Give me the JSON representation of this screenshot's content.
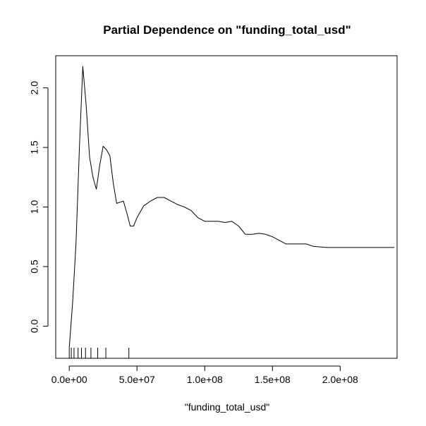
{
  "chart_data": {
    "type": "line",
    "title": "Partial Dependence on \"funding_total_usd\"",
    "xlabel": "\"funding_total_usd\"",
    "ylabel": "",
    "xlim": [
      -10000000,
      242000000
    ],
    "ylim": [
      -0.27,
      2.27
    ],
    "x_ticks": [
      {
        "value": 0,
        "label": "0.0e+00"
      },
      {
        "value": 50000000,
        "label": "5.0e+07"
      },
      {
        "value": 100000000,
        "label": "1.0e+08"
      },
      {
        "value": 150000000,
        "label": "1.5e+08"
      },
      {
        "value": 200000000,
        "label": "2.0e+08"
      }
    ],
    "y_ticks": [
      {
        "value": 0.0,
        "label": "0.0"
      },
      {
        "value": 0.5,
        "label": "0.5"
      },
      {
        "value": 1.0,
        "label": "1.0"
      },
      {
        "value": 1.5,
        "label": "1.5"
      },
      {
        "value": 2.0,
        "label": "2.0"
      }
    ],
    "series": [
      {
        "x": [
          0,
          2500000,
          5000000,
          7500000,
          10000000,
          12500000,
          15000000,
          17500000,
          20000000,
          22500000,
          25000000,
          27500000,
          30000000,
          32500000,
          35000000,
          37500000,
          40000000,
          42500000,
          45000000,
          47500000,
          50000000,
          55000000,
          60000000,
          65000000,
          70000000,
          75000000,
          80000000,
          85000000,
          90000000,
          95000000,
          100000000,
          105000000,
          110000000,
          115000000,
          120000000,
          125000000,
          130000000,
          135000000,
          140000000,
          145000000,
          150000000,
          160000000,
          170000000,
          175000000,
          180000000,
          190000000,
          200000000,
          210000000,
          220000000,
          230000000,
          240000000
        ],
        "y": [
          -0.18,
          0.2,
          0.7,
          1.5,
          2.18,
          1.85,
          1.42,
          1.25,
          1.15,
          1.35,
          1.51,
          1.48,
          1.43,
          1.2,
          1.03,
          1.04,
          1.05,
          0.95,
          0.84,
          0.84,
          0.91,
          1.01,
          1.05,
          1.08,
          1.08,
          1.05,
          1.02,
          1.0,
          0.97,
          0.91,
          0.88,
          0.88,
          0.88,
          0.87,
          0.88,
          0.84,
          0.77,
          0.77,
          0.78,
          0.77,
          0.75,
          0.69,
          0.69,
          0.69,
          0.67,
          0.66,
          0.66,
          0.66,
          0.66,
          0.66,
          0.66
        ]
      }
    ],
    "rug": [
      0,
      1500000,
      3500000,
      6500000,
      9000000,
      12000000,
      16000000,
      21000000,
      27000000,
      44000000
    ],
    "colors": {
      "line": "#000000",
      "axis": "#000000",
      "background": "#ffffff"
    }
  }
}
